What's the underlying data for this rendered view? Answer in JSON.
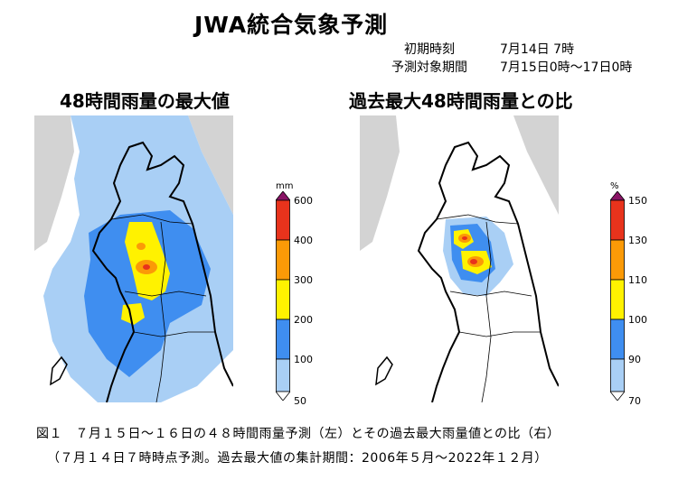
{
  "title": "JWA統合気象予測",
  "meta": {
    "init_label": "初期時刻",
    "init_value": "7月14日 7時",
    "period_label": "予測対象期間",
    "period_value": "7月15日0時～17日0時"
  },
  "panels": {
    "left_title": "48時間雨量の最大値",
    "right_title": "過去最大48時間雨量との比"
  },
  "legend_left": {
    "unit": "mm",
    "ticks": [
      "600",
      "400",
      "300",
      "200",
      "100",
      "50"
    ],
    "colors": [
      "#e8331c",
      "#fb9a07",
      "#fff200",
      "#3f8ef0",
      "#a9cff5"
    ],
    "over_color": "#8a1466"
  },
  "legend_right": {
    "unit": "%",
    "ticks": [
      "150",
      "130",
      "110",
      "100",
      "90",
      "70"
    ],
    "colors": [
      "#e8331c",
      "#fb9a07",
      "#fff200",
      "#3f8ef0",
      "#a9cff5"
    ],
    "over_color": "#8a1466"
  },
  "map_colors": {
    "sea": "#ffffff",
    "land_other": "#d3d3d3",
    "light_blue": "#a9cff5",
    "blue": "#3f8ef0",
    "yellow": "#fff200",
    "orange": "#fb9a07",
    "red": "#e8331c"
  },
  "caption": {
    "line1": "図１　７月１５日～１６日の４８時間雨量予測（左）とその過去最大雨量値との比（右）",
    "line2": "（７月１４日７時時点予測。過去最大値の集計期間：2006年５月～2022年１２月）"
  }
}
